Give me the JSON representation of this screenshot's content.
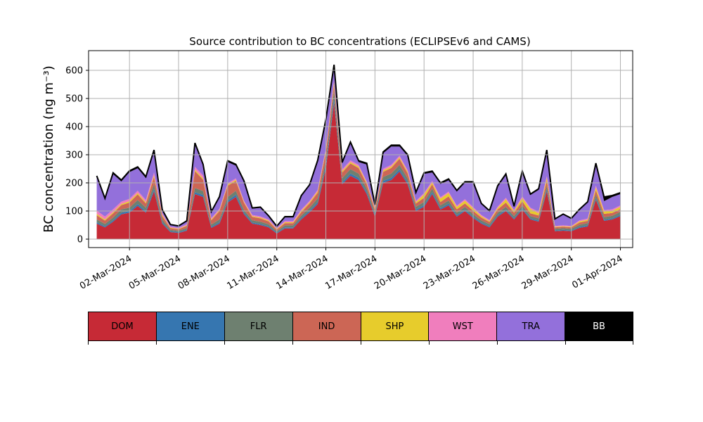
{
  "chart_data": {
    "type": "area",
    "stacked": true,
    "title": "Source contribution to BC concentrations (ECLIPSEv6 and CAMS)",
    "ylabel": "BC concentration (ng m⁻³)",
    "xlabel": "",
    "ylim": [
      -30,
      670
    ],
    "xlim": [
      "2024-02-28T12:00",
      "2024-04-01T18:00"
    ],
    "yticks": [
      0,
      100,
      200,
      300,
      400,
      500,
      600
    ],
    "xticks": [
      "02-Mar-2024",
      "05-Mar-2024",
      "08-Mar-2024",
      "11-Mar-2024",
      "14-Mar-2024",
      "17-Mar-2024",
      "20-Mar-2024",
      "23-Mar-2024",
      "26-Mar-2024",
      "29-Mar-2024",
      "01-Apr-2024"
    ],
    "grid": true,
    "legend_placement": "bottom colorbar",
    "x": [
      "2024-02-29T00:00",
      "2024-02-29T12:00",
      "2024-03-01T00:00",
      "2024-03-01T12:00",
      "2024-03-02T00:00",
      "2024-03-02T12:00",
      "2024-03-03T00:00",
      "2024-03-03T12:00",
      "2024-03-04T00:00",
      "2024-03-04T12:00",
      "2024-03-05T00:00",
      "2024-03-05T12:00",
      "2024-03-06T00:00",
      "2024-03-06T12:00",
      "2024-03-07T00:00",
      "2024-03-07T12:00",
      "2024-03-08T00:00",
      "2024-03-08T12:00",
      "2024-03-09T00:00",
      "2024-03-09T12:00",
      "2024-03-10T00:00",
      "2024-03-10T12:00",
      "2024-03-11T00:00",
      "2024-03-11T12:00",
      "2024-03-12T00:00",
      "2024-03-12T12:00",
      "2024-03-13T00:00",
      "2024-03-13T12:00",
      "2024-03-14T00:00",
      "2024-03-14T12:00",
      "2024-03-15T00:00",
      "2024-03-15T12:00",
      "2024-03-16T00:00",
      "2024-03-16T12:00",
      "2024-03-17T00:00",
      "2024-03-17T12:00",
      "2024-03-18T00:00",
      "2024-03-18T12:00",
      "2024-03-19T00:00",
      "2024-03-19T12:00",
      "2024-03-20T00:00",
      "2024-03-20T12:00",
      "2024-03-21T00:00",
      "2024-03-21T12:00",
      "2024-03-22T00:00",
      "2024-03-22T12:00",
      "2024-03-23T00:00",
      "2024-03-23T12:00",
      "2024-03-24T00:00",
      "2024-03-24T12:00",
      "2024-03-25T00:00",
      "2024-03-25T12:00",
      "2024-03-26T00:00",
      "2024-03-26T12:00",
      "2024-03-27T00:00",
      "2024-03-27T12:00",
      "2024-03-28T00:00",
      "2024-03-28T12:00",
      "2024-03-29T00:00",
      "2024-03-29T12:00",
      "2024-03-30T00:00",
      "2024-03-30T12:00",
      "2024-03-31T00:00",
      "2024-03-31T12:00",
      "2024-04-01T00:00"
    ],
    "series": [
      {
        "name": "DOM",
        "color": "#c62a36",
        "values": [
          55,
          42,
          62,
          88,
          94,
          118,
          94,
          170,
          55,
          25,
          22,
          30,
          160,
          150,
          40,
          55,
          130,
          150,
          88,
          55,
          50,
          42,
          20,
          38,
          38,
          70,
          95,
          125,
          250,
          485,
          195,
          225,
          210,
          160,
          80,
          200,
          210,
          240,
          195,
          100,
          115,
          160,
          105,
          120,
          80,
          100,
          75,
          55,
          42,
          80,
          100,
          70,
          105,
          70,
          62,
          170,
          28,
          30,
          28,
          40,
          45,
          140,
          65,
          70,
          82
        ]
      },
      {
        "name": "ENE",
        "color": "#3676b0",
        "values": [
          5,
          4,
          5,
          6,
          6,
          7,
          6,
          8,
          5,
          3,
          3,
          3,
          7,
          7,
          4,
          5,
          7,
          8,
          6,
          4,
          4,
          4,
          3,
          4,
          4,
          5,
          6,
          7,
          10,
          14,
          7,
          8,
          8,
          7,
          5,
          7,
          8,
          8,
          7,
          5,
          6,
          7,
          5,
          6,
          5,
          5,
          5,
          4,
          4,
          5,
          5,
          4,
          5,
          4,
          4,
          7,
          3,
          3,
          3,
          4,
          4,
          6,
          4,
          4,
          5
        ]
      },
      {
        "name": "FLR",
        "color": "#6e8070",
        "values": [
          10,
          8,
          10,
          12,
          12,
          14,
          12,
          18,
          10,
          5,
          5,
          6,
          15,
          14,
          8,
          10,
          13,
          14,
          10,
          8,
          8,
          7,
          5,
          7,
          7,
          9,
          11,
          13,
          20,
          30,
          15,
          16,
          15,
          13,
          9,
          14,
          15,
          16,
          14,
          10,
          11,
          13,
          10,
          11,
          9,
          10,
          9,
          8,
          7,
          9,
          10,
          8,
          10,
          8,
          8,
          13,
          6,
          6,
          6,
          7,
          8,
          13,
          9,
          9,
          10
        ]
      },
      {
        "name": "IND",
        "color": "#cc6655",
        "values": [
          15,
          12,
          15,
          15,
          18,
          20,
          15,
          25,
          12,
          6,
          5,
          8,
          60,
          40,
          15,
          30,
          40,
          35,
          25,
          12,
          12,
          10,
          6,
          8,
          8,
          12,
          15,
          20,
          30,
          20,
          20,
          20,
          20,
          15,
          10,
          18,
          20,
          22,
          18,
          12,
          15,
          15,
          12,
          15,
          12,
          12,
          12,
          10,
          8,
          12,
          15,
          12,
          15,
          10,
          10,
          18,
          5,
          5,
          5,
          8,
          8,
          15,
          12,
          10,
          10
        ]
      },
      {
        "name": "SHP",
        "color": "#e7cc2c",
        "values": [
          5,
          4,
          4,
          4,
          5,
          5,
          4,
          6,
          4,
          2,
          2,
          2,
          5,
          5,
          3,
          3,
          4,
          4,
          3,
          3,
          3,
          3,
          2,
          3,
          3,
          4,
          4,
          5,
          6,
          8,
          5,
          5,
          5,
          5,
          4,
          5,
          5,
          5,
          5,
          4,
          12,
          6,
          12,
          12,
          8,
          10,
          8,
          5,
          3,
          5,
          12,
          5,
          12,
          15,
          8,
          10,
          2,
          2,
          2,
          4,
          4,
          10,
          8,
          8,
          8
        ]
      },
      {
        "name": "WST",
        "color": "#f07ebd",
        "values": [
          12,
          10,
          10,
          8,
          8,
          8,
          8,
          10,
          6,
          3,
          3,
          4,
          10,
          10,
          5,
          5,
          5,
          5,
          5,
          4,
          4,
          4,
          3,
          4,
          4,
          5,
          5,
          5,
          6,
          8,
          6,
          6,
          6,
          5,
          5,
          6,
          6,
          6,
          6,
          5,
          5,
          6,
          5,
          5,
          5,
          5,
          5,
          4,
          4,
          5,
          5,
          4,
          5,
          5,
          5,
          6,
          3,
          3,
          3,
          4,
          4,
          6,
          5,
          5,
          5
        ]
      },
      {
        "name": "TRA",
        "color": "#9370db",
        "values": [
          118,
          60,
          125,
          72,
          95,
          80,
          78,
          75,
          10,
          6,
          5,
          10,
          80,
          35,
          20,
          40,
          75,
          45,
          65,
          22,
          30,
          10,
          5,
          13,
          13,
          47,
          54,
          100,
          95,
          45,
          20,
          60,
          10,
          60,
          5,
          55,
          65,
          32,
          50,
          26,
          68,
          30,
          47,
          40,
          50,
          58,
          86,
          38,
          30,
          70,
          80,
          10,
          85,
          45,
          78,
          88,
          23,
          38,
          25,
          36,
          57,
          75,
          32,
          44,
          40
        ]
      },
      {
        "name": "BB",
        "color": "#000000",
        "values": [
          5,
          5,
          5,
          5,
          5,
          5,
          5,
          5,
          3,
          2,
          2,
          2,
          5,
          5,
          3,
          3,
          5,
          5,
          5,
          3,
          3,
          3,
          2,
          3,
          3,
          3,
          3,
          5,
          8,
          10,
          5,
          5,
          5,
          5,
          4,
          5,
          5,
          5,
          5,
          4,
          4,
          5,
          4,
          5,
          4,
          4,
          4,
          3,
          3,
          4,
          5,
          4,
          5,
          3,
          4,
          5,
          2,
          2,
          2,
          3,
          3,
          5,
          15,
          5,
          5
        ]
      }
    ]
  },
  "legend": [
    "DOM",
    "ENE",
    "FLR",
    "IND",
    "SHP",
    "WST",
    "TRA",
    "BB"
  ],
  "colors": {
    "DOM": "#c62a36",
    "ENE": "#3676b0",
    "FLR": "#6e8070",
    "IND": "#cc6655",
    "SHP": "#e7cc2c",
    "WST": "#f07ebd",
    "TRA": "#9370db",
    "BB": "#000000"
  }
}
